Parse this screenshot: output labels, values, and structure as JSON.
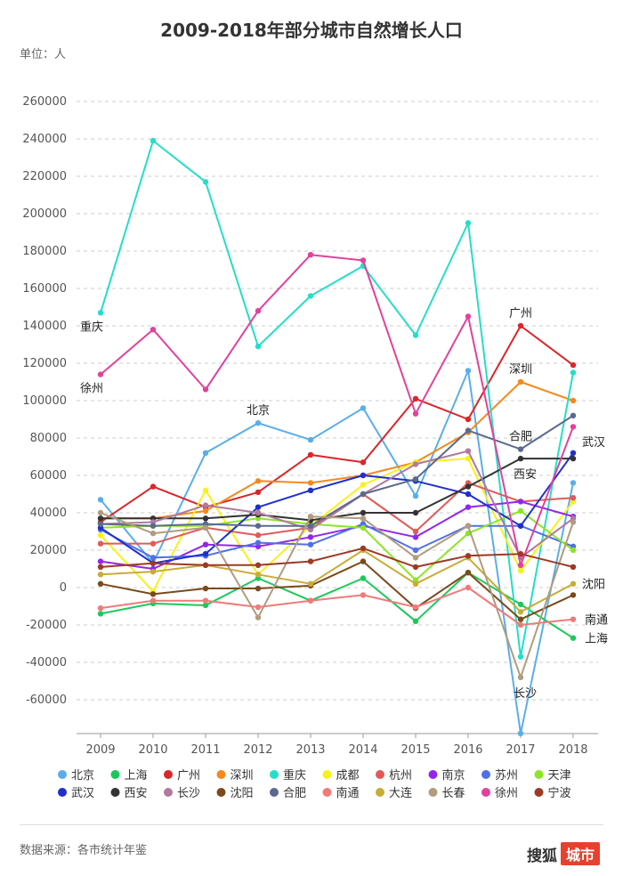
{
  "title": "2009-2018年部分城市自然增长人口",
  "unit_label": "单位：人",
  "source": "数据来源：各市统计年鉴",
  "brand": {
    "name": "搜狐",
    "badge": "城市"
  },
  "chart_data": {
    "type": "line",
    "title": "2009-2018年部分城市自然增长人口",
    "xlabel": "",
    "ylabel": "单位：人",
    "x": [
      "2009",
      "2010",
      "2011",
      "2012",
      "2013",
      "2014",
      "2015",
      "2016",
      "2017",
      "2018"
    ],
    "ylim": [
      -80000,
      260000
    ],
    "yticks": [
      260000,
      240000,
      220000,
      200000,
      180000,
      160000,
      140000,
      120000,
      100000,
      80000,
      60000,
      40000,
      20000,
      0,
      -20000,
      -40000,
      -60000
    ],
    "series": [
      {
        "name": "北京",
        "color": "#5aaee8",
        "values": [
          47000,
          13000,
          72000,
          88000,
          79000,
          96000,
          49000,
          116000,
          -78000,
          56000
        ]
      },
      {
        "name": "上海",
        "color": "#1bc95a",
        "values": [
          -14000,
          -8500,
          -9500,
          5000,
          -7000,
          5000,
          -18000,
          8000,
          -9000,
          -27000
        ]
      },
      {
        "name": "广州",
        "color": "#d9262a",
        "values": [
          35000,
          54000,
          43000,
          51000,
          71000,
          67000,
          101000,
          90000,
          140000,
          119000
        ]
      },
      {
        "name": "深圳",
        "color": "#f5891c",
        "values": [
          37000,
          37000,
          41000,
          57000,
          56000,
          60000,
          67000,
          83000,
          110000,
          100000
        ]
      },
      {
        "name": "重庆",
        "color": "#24dec8",
        "values": [
          147000,
          239000,
          217000,
          129000,
          156000,
          172000,
          135000,
          195000,
          -37000,
          115000
        ]
      },
      {
        "name": "成都",
        "color": "#f6f21c",
        "values": [
          28000,
          -2000,
          52000,
          7000,
          33000,
          55000,
          67000,
          69000,
          9000,
          46000
        ]
      },
      {
        "name": "杭州",
        "color": "#e05a5a",
        "values": [
          23500,
          23500,
          32000,
          28000,
          32000,
          50000,
          30000,
          56000,
          46000,
          48000
        ]
      },
      {
        "name": "南京",
        "color": "#9226ec",
        "values": [
          14000,
          10000,
          23000,
          22000,
          27000,
          33000,
          27000,
          43000,
          46000,
          38000
        ]
      },
      {
        "name": "苏州",
        "color": "#5070e6",
        "values": [
          31000,
          16000,
          17000,
          24000,
          23000,
          34000,
          20000,
          33000,
          33000,
          22000
        ]
      },
      {
        "name": "天津",
        "color": "#8de526",
        "values": [
          32000,
          33000,
          33000,
          37000,
          34000,
          32000,
          4000,
          29000,
          41000,
          20000
        ]
      },
      {
        "name": "武汉",
        "color": "#1f2fce",
        "values": [
          32000,
          13000,
          18000,
          43000,
          52000,
          60000,
          57000,
          50000,
          33000,
          72000
        ]
      },
      {
        "name": "西安",
        "color": "#333333",
        "values": [
          37000,
          37000,
          37000,
          39000,
          36000,
          40000,
          40000,
          54000,
          69000,
          69000
        ]
      },
      {
        "name": "长沙",
        "color": "#b07a9e",
        "values": [
          34000,
          35000,
          44000,
          40000,
          31000,
          50000,
          66000,
          73000,
          16000,
          37000
        ]
      },
      {
        "name": "沈阳",
        "color": "#7a4a1a",
        "values": [
          2000,
          -3500,
          -500,
          -500,
          1000,
          14000,
          -11000,
          8000,
          -17000,
          -4000
        ]
      },
      {
        "name": "合肥",
        "color": "#5a6a8e",
        "values": [
          34000,
          33000,
          34000,
          33000,
          33000,
          50000,
          58000,
          84000,
          74000,
          92000
        ]
      },
      {
        "name": "南通",
        "color": "#f07a7a",
        "values": [
          -11000,
          -7000,
          -7000,
          -10500,
          -7000,
          -4000,
          -10500,
          0,
          -20000,
          -17000
        ]
      },
      {
        "name": "大连",
        "color": "#c8ac36",
        "values": [
          7000,
          8500,
          12000,
          7000,
          2000,
          20000,
          2000,
          16000,
          -13000,
          2000
        ]
      },
      {
        "name": "长春",
        "color": "#b09c7e",
        "values": [
          40000,
          29000,
          32000,
          -16000,
          38000,
          37000,
          16000,
          33000,
          -48000,
          35000
        ]
      },
      {
        "name": "徐州",
        "color": "#e0429e",
        "values": [
          114000,
          138000,
          106000,
          148000,
          178000,
          175000,
          93000,
          145000,
          12000,
          86000
        ]
      },
      {
        "name": "宁波",
        "color": "#9c3a26",
        "values": [
          11000,
          13000,
          12000,
          12000,
          14000,
          21000,
          11000,
          17000,
          18000,
          11000
        ]
      }
    ],
    "annotations": [
      {
        "text": "重庆",
        "series": "重庆",
        "index": 0,
        "anchor": "left-below"
      },
      {
        "text": "徐州",
        "series": "徐州",
        "index": 0,
        "anchor": "left-below"
      },
      {
        "text": "北京",
        "series": "北京",
        "index": 3,
        "anchor": "above"
      },
      {
        "text": "广州",
        "series": "广州",
        "index": 8,
        "anchor": "above"
      },
      {
        "text": "深圳",
        "series": "深圳",
        "index": 8,
        "anchor": "above"
      },
      {
        "text": "合肥",
        "series": "合肥",
        "index": 8,
        "anchor": "above"
      },
      {
        "text": "西安",
        "series": "西安",
        "index": 8,
        "anchor": "below"
      },
      {
        "text": "长沙",
        "series": "长春",
        "index": 8,
        "anchor": "below"
      },
      {
        "text": "武汉",
        "series": "武汉",
        "index": 9,
        "anchor": "right-up"
      },
      {
        "text": "沈阳",
        "series": "沈阳",
        "index": 9,
        "anchor": "right-up"
      },
      {
        "text": "南通",
        "series": "南通",
        "index": 9,
        "anchor": "right"
      },
      {
        "text": "上海",
        "series": "上海",
        "index": 9,
        "anchor": "right"
      }
    ],
    "legend_position": "bottom"
  }
}
